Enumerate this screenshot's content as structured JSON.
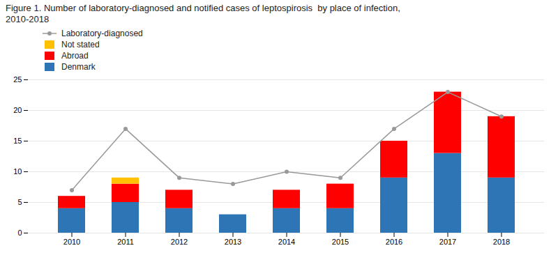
{
  "chart_data": {
    "type": "bar",
    "title": "Figure 1. Number of laboratory-diagnosed and notified cases of leptospirosis  by place of infection,\n2010-2018",
    "categories": [
      "2010",
      "2011",
      "2012",
      "2013",
      "2014",
      "2015",
      "2016",
      "2017",
      "2018"
    ],
    "series": [
      {
        "name": "Denmark",
        "type": "bar",
        "color": "#2e75b6",
        "values": [
          4,
          5,
          4,
          3,
          4,
          4,
          9,
          13,
          9
        ]
      },
      {
        "name": "Abroad",
        "type": "bar",
        "color": "#ff0000",
        "values": [
          2,
          3,
          3,
          0,
          3,
          4,
          6,
          10,
          10
        ]
      },
      {
        "name": "Not stated",
        "type": "bar",
        "color": "#ffc000",
        "values": [
          0,
          1,
          0,
          0,
          0,
          0,
          0,
          0,
          0
        ]
      },
      {
        "name": "Laboratory-diagnosed",
        "type": "line",
        "color": "#999999",
        "marker": "circle",
        "line_style": "solid",
        "values": [
          7,
          17,
          9,
          8,
          10,
          9,
          17,
          23,
          19
        ]
      }
    ],
    "stacked": true,
    "ylim": [
      0,
      25
    ],
    "yticks": [
      0,
      5,
      10,
      15,
      20,
      25
    ],
    "grid": true,
    "legend": "upper left"
  }
}
